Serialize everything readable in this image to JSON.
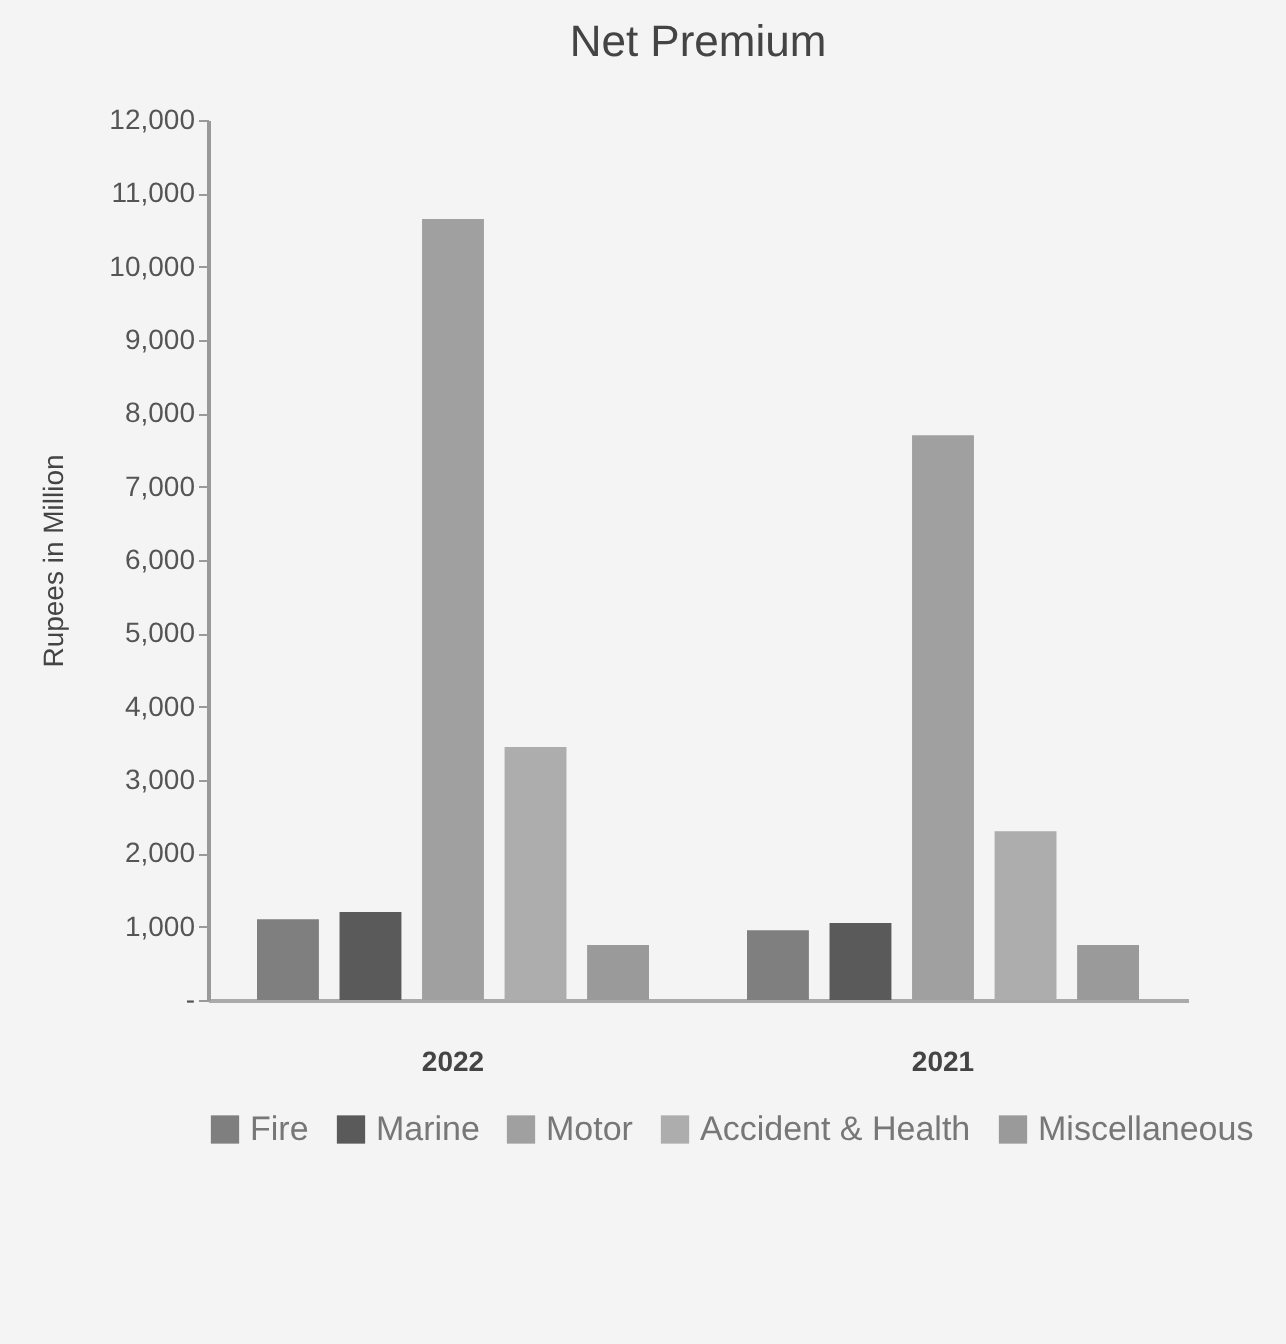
{
  "chart_data": {
    "type": "bar",
    "title": "Net Premium",
    "ylabel": "Rupees in Million",
    "categories": [
      "2022",
      "2021"
    ],
    "series": [
      {
        "name": "Fire",
        "color": "#7f7f7f",
        "values": [
          1100,
          950
        ]
      },
      {
        "name": "Marine",
        "color": "#5a5a5a",
        "values": [
          1200,
          1050
        ]
      },
      {
        "name": "Motor",
        "color": "#a0a0a0",
        "values": [
          10650,
          7700
        ]
      },
      {
        "name": "Accident & Health",
        "color": "#adadad",
        "values": [
          3450,
          2300
        ]
      },
      {
        "name": "Miscellaneous",
        "color": "#9a9a9a",
        "values": [
          750,
          750
        ]
      }
    ],
    "ylim": [
      0,
      12000
    ],
    "yticks": [
      {
        "value": 0,
        "label": "-"
      },
      {
        "value": 1000,
        "label": "1,000"
      },
      {
        "value": 2000,
        "label": "2,000"
      },
      {
        "value": 3000,
        "label": "3,000"
      },
      {
        "value": 4000,
        "label": "4,000"
      },
      {
        "value": 5000,
        "label": "5,000"
      },
      {
        "value": 6000,
        "label": "6,000"
      },
      {
        "value": 7000,
        "label": "7,000"
      },
      {
        "value": 8000,
        "label": "8,000"
      },
      {
        "value": 9000,
        "label": "9,000"
      },
      {
        "value": 10000,
        "label": "10,000"
      },
      {
        "value": 11000,
        "label": "11,000"
      },
      {
        "value": 12000,
        "label": "12,000"
      }
    ],
    "grid": false,
    "legend": "bottom"
  }
}
